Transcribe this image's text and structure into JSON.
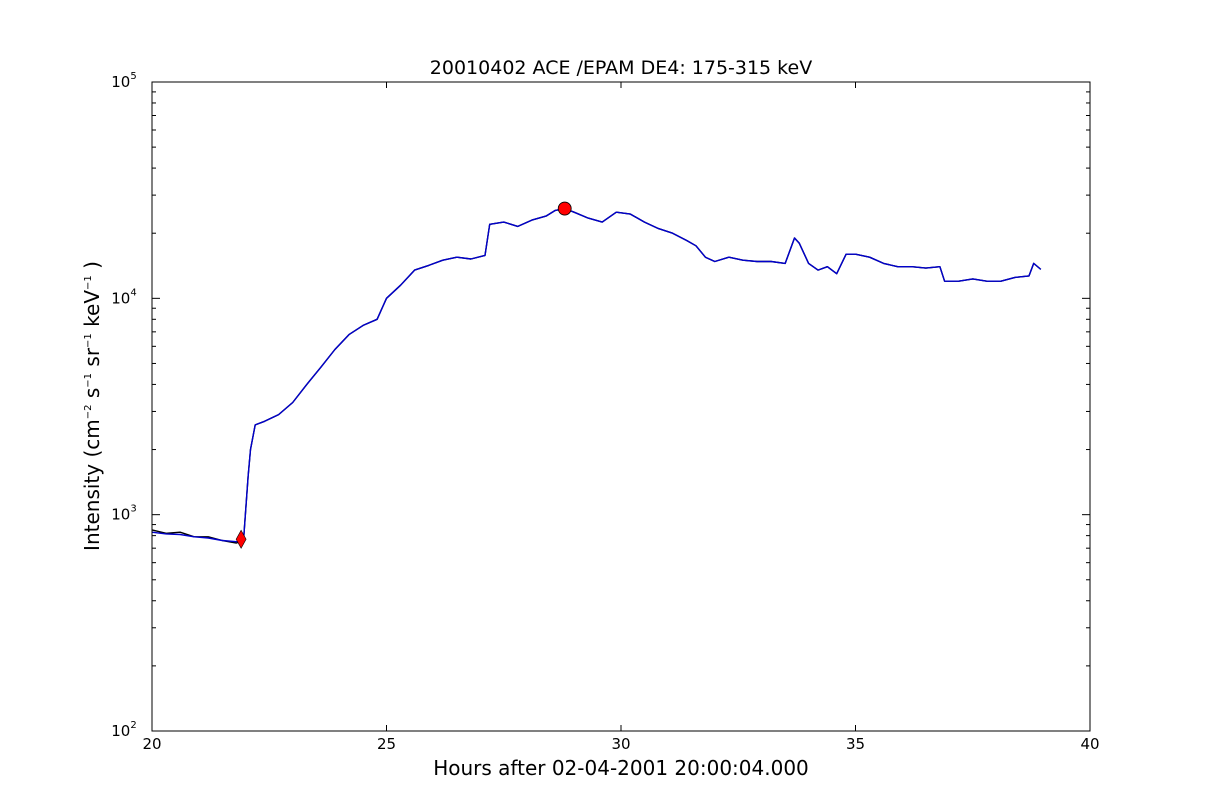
{
  "chart_data": {
    "type": "line",
    "title": "20010402 ACE /EPAM DE4: 175-315 keV",
    "xlabel": "Hours after 02-04-2001 20:00:04.000",
    "ylabel": {
      "base": "Intensity (cm",
      "sup1": "−2",
      "mid1": " s",
      "sup2": "−1",
      "mid2": " sr",
      "sup3": "−1",
      "mid3": " keV",
      "sup4": "−1",
      "end": " )"
    },
    "xlim": [
      20,
      40
    ],
    "ylim": [
      100,
      100000
    ],
    "yscale": "log",
    "grid": false,
    "x_ticks": [
      {
        "value": 20,
        "label": "20"
      },
      {
        "value": 25,
        "label": "25"
      },
      {
        "value": 30,
        "label": "30"
      },
      {
        "value": 35,
        "label": "35"
      },
      {
        "value": 40,
        "label": "40"
      }
    ],
    "y_ticks": [
      {
        "value": 100,
        "base": "10",
        "exp": "2"
      },
      {
        "value": 1000,
        "base": "10",
        "exp": "3"
      },
      {
        "value": 10000,
        "base": "10",
        "exp": "4"
      },
      {
        "value": 100000,
        "base": "10",
        "exp": "5"
      }
    ],
    "series": [
      {
        "color": "#000000",
        "role": "raw",
        "x": [
          20.0,
          20.3,
          20.6,
          20.9,
          21.2,
          21.5,
          21.8,
          21.95,
          22.05,
          22.1,
          22.2,
          22.4,
          22.7,
          23.0,
          23.3,
          23.6,
          23.9,
          24.2,
          24.5,
          24.8,
          25.0,
          25.3,
          25.6,
          25.9,
          26.2,
          26.5,
          26.8,
          27.1,
          27.2,
          27.5,
          27.8,
          28.1,
          28.4,
          28.6,
          28.8,
          29.0,
          29.3,
          29.6,
          29.9,
          30.2,
          30.5,
          30.8,
          31.1,
          31.4,
          31.6,
          31.8,
          32.0,
          32.3,
          32.6,
          32.9,
          33.2,
          33.5,
          33.7,
          33.8,
          34.0,
          34.2,
          34.4,
          34.6,
          34.8,
          35.0,
          35.3,
          35.6,
          35.9,
          36.2,
          36.5,
          36.8,
          36.9,
          37.2,
          37.5,
          37.8,
          38.1,
          38.4,
          38.7,
          38.8,
          38.95
        ],
        "y": [
          850,
          820,
          830,
          790,
          790,
          760,
          740,
          760,
          1500,
          2000,
          2600,
          2700,
          2900,
          3300,
          4000,
          4800,
          5800,
          6800,
          7500,
          8000,
          10000,
          11500,
          13500,
          14200,
          15000,
          15500,
          15200,
          15800,
          22000,
          22500,
          21500,
          23000,
          24000,
          25500,
          26000,
          25000,
          23500,
          22500,
          25000,
          24500,
          22500,
          21000,
          20000,
          18500,
          17500,
          15500,
          14800,
          15500,
          15000,
          14800,
          14800,
          14500,
          19000,
          18000,
          14500,
          13500,
          14000,
          13000,
          16000,
          16000,
          15500,
          14500,
          14000,
          14000,
          13800,
          14000,
          12000,
          12000,
          12300,
          12000,
          12000,
          12500,
          12700,
          14500,
          13600
        ]
      },
      {
        "color": "#0000cc",
        "role": "smoothed",
        "x": [
          20.0,
          20.3,
          20.6,
          20.9,
          21.2,
          21.5,
          21.8,
          21.95,
          22.05,
          22.1,
          22.2,
          22.4,
          22.7,
          23.0,
          23.3,
          23.6,
          23.9,
          24.2,
          24.5,
          24.8,
          25.0,
          25.3,
          25.6,
          25.9,
          26.2,
          26.5,
          26.8,
          27.1,
          27.2,
          27.5,
          27.8,
          28.1,
          28.4,
          28.6,
          28.8,
          29.0,
          29.3,
          29.6,
          29.9,
          30.2,
          30.5,
          30.8,
          31.1,
          31.4,
          31.6,
          31.8,
          32.0,
          32.3,
          32.6,
          32.9,
          33.2,
          33.5,
          33.7,
          33.8,
          34.0,
          34.2,
          34.4,
          34.6,
          34.8,
          35.0,
          35.3,
          35.6,
          35.9,
          36.2,
          36.5,
          36.8,
          36.9,
          37.2,
          37.5,
          37.8,
          38.1,
          38.4,
          38.7,
          38.8,
          38.95
        ],
        "y": [
          830,
          815,
          810,
          790,
          780,
          760,
          750,
          760,
          1500,
          2000,
          2600,
          2700,
          2900,
          3300,
          4000,
          4800,
          5800,
          6800,
          7500,
          8000,
          10000,
          11500,
          13500,
          14200,
          15000,
          15500,
          15200,
          15800,
          22000,
          22500,
          21500,
          23000,
          24000,
          25500,
          26000,
          25000,
          23500,
          22500,
          25000,
          24500,
          22500,
          21000,
          20000,
          18500,
          17500,
          15500,
          14800,
          15500,
          15000,
          14800,
          14800,
          14500,
          19000,
          18000,
          14500,
          13500,
          14000,
          13000,
          16000,
          16000,
          15500,
          14500,
          14000,
          14000,
          13800,
          14000,
          12000,
          12000,
          12300,
          12000,
          12000,
          12500,
          12700,
          14500,
          13600
        ]
      }
    ],
    "markers": [
      {
        "shape": "diamond",
        "color": "#ff0000",
        "x": 21.9,
        "y": 770
      },
      {
        "shape": "circle",
        "color": "#ff0000",
        "x": 28.8,
        "y": 26000
      }
    ]
  }
}
